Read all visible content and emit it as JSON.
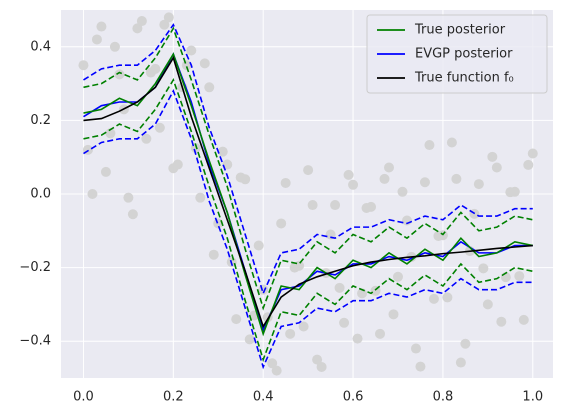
{
  "chart_data": {
    "type": "line",
    "x": [
      0,
      0.04,
      0.08,
      0.12,
      0.16,
      0.2,
      0.24,
      0.28,
      0.32,
      0.36,
      0.4,
      0.44,
      0.48,
      0.52,
      0.56,
      0.6,
      0.64,
      0.68,
      0.72,
      0.76,
      0.8,
      0.84,
      0.88,
      0.92,
      0.96,
      1.0
    ],
    "series": [
      {
        "name": "True posterior",
        "color": "#008000",
        "values": [
          0.22,
          0.23,
          0.26,
          0.24,
          0.3,
          0.38,
          0.24,
          0.09,
          -0.05,
          -0.22,
          -0.38,
          -0.25,
          -0.26,
          -0.2,
          -0.23,
          -0.18,
          -0.2,
          -0.16,
          -0.19,
          -0.15,
          -0.18,
          -0.12,
          -0.17,
          -0.16,
          -0.13,
          -0.14
        ],
        "upper": [
          0.29,
          0.3,
          0.33,
          0.31,
          0.37,
          0.45,
          0.31,
          0.16,
          0.02,
          -0.15,
          -0.31,
          -0.18,
          -0.19,
          -0.13,
          -0.16,
          -0.11,
          -0.13,
          -0.09,
          -0.12,
          -0.08,
          -0.11,
          -0.05,
          -0.1,
          -0.09,
          -0.06,
          -0.07
        ],
        "lower": [
          0.15,
          0.16,
          0.19,
          0.17,
          0.23,
          0.31,
          0.17,
          0.02,
          -0.12,
          -0.29,
          -0.45,
          -0.32,
          -0.33,
          -0.27,
          -0.3,
          -0.25,
          -0.27,
          -0.23,
          -0.26,
          -0.22,
          -0.25,
          -0.19,
          -0.24,
          -0.23,
          -0.2,
          -0.21
        ]
      },
      {
        "name": "EVGP posterior",
        "color": "#0000ff",
        "values": [
          0.21,
          0.24,
          0.25,
          0.25,
          0.29,
          0.38,
          0.25,
          0.08,
          -0.05,
          -0.21,
          -0.37,
          -0.26,
          -0.25,
          -0.21,
          -0.22,
          -0.19,
          -0.19,
          -0.17,
          -0.18,
          -0.16,
          -0.17,
          -0.13,
          -0.16,
          -0.16,
          -0.14,
          -0.14
        ],
        "upper": [
          0.31,
          0.34,
          0.35,
          0.35,
          0.39,
          0.46,
          0.35,
          0.18,
          0.05,
          -0.11,
          -0.27,
          -0.16,
          -0.15,
          -0.11,
          -0.12,
          -0.09,
          -0.09,
          -0.07,
          -0.08,
          -0.06,
          -0.07,
          -0.03,
          -0.06,
          -0.06,
          -0.04,
          -0.04
        ],
        "lower": [
          0.11,
          0.14,
          0.15,
          0.15,
          0.19,
          0.28,
          0.15,
          -0.02,
          -0.15,
          -0.31,
          -0.47,
          -0.36,
          -0.35,
          -0.31,
          -0.32,
          -0.29,
          -0.29,
          -0.27,
          -0.28,
          -0.26,
          -0.27,
          -0.23,
          -0.26,
          -0.26,
          -0.24,
          -0.24
        ]
      },
      {
        "name": "True function f₀",
        "color": "#000000",
        "values": [
          0.2,
          0.205,
          0.225,
          0.25,
          0.29,
          0.37,
          0.21,
          0.07,
          -0.07,
          -0.21,
          -0.36,
          -0.28,
          -0.245,
          -0.225,
          -0.21,
          -0.195,
          -0.185,
          -0.178,
          -0.172,
          -0.168,
          -0.162,
          -0.158,
          -0.153,
          -0.148,
          -0.144,
          -0.14
        ]
      }
    ],
    "scatter": {
      "color": "#d3d3d3",
      "x": [
        0,
        0.02,
        0.04,
        0.06,
        0.08,
        0.1,
        0.12,
        0.14,
        0.16,
        0.18,
        0.2,
        0.22,
        0.24,
        0.26,
        0.28,
        0.3,
        0.32,
        0.34,
        0.36,
        0.38,
        0.4,
        0.42,
        0.44,
        0.46,
        0.48,
        0.5,
        0.52,
        0.54,
        0.56,
        0.58,
        0.6,
        0.62,
        0.64,
        0.66,
        0.68,
        0.7,
        0.72,
        0.74,
        0.76,
        0.78,
        0.8,
        0.82,
        0.84,
        0.86,
        0.88,
        0.9,
        0.92,
        0.94,
        0.96,
        0.98,
        1.0,
        0.01,
        0.03,
        0.05,
        0.07,
        0.09,
        0.11,
        0.13,
        0.15,
        0.17,
        0.19,
        0.21,
        0.23,
        0.25,
        0.27,
        0.29,
        0.31,
        0.33,
        0.35,
        0.37,
        0.39,
        0.41,
        0.43,
        0.45,
        0.47,
        0.49,
        0.51,
        0.53,
        0.55,
        0.57,
        0.59,
        0.61,
        0.63,
        0.65,
        0.67,
        0.69,
        0.71,
        0.73,
        0.75,
        0.77,
        0.79,
        0.81,
        0.83,
        0.85,
        0.87,
        0.89,
        0.91,
        0.93,
        0.95,
        0.97,
        0.99
      ],
      "y": [
        0.35,
        0.0,
        0.455,
        0.165,
        0.325,
        -0.01,
        0.45,
        0.15,
        0.34,
        0.46,
        0.07,
        0.29,
        0.39,
        -0.01,
        0.29,
        -0.08,
        0.08,
        -0.34,
        0.04,
        -0.33,
        -0.26,
        -0.46,
        -0.08,
        -0.38,
        -0.195,
        0.065,
        -0.45,
        -0.215,
        -0.03,
        -0.35,
        0.025,
        -0.27,
        -0.035,
        -0.38,
        0.072,
        -0.225,
        -0.072,
        -0.42,
        0.032,
        -0.285,
        -0.112,
        0.14,
        -0.458,
        -0.155,
        0.027,
        -0.3,
        0.072,
        -0.226,
        0.006,
        -0.342,
        0.11,
        0.12,
        0.42,
        0.06,
        0.4,
        0.23,
        -0.055,
        0.47,
        0.33,
        0.18,
        0.48,
        0.08,
        0.35,
        0.125,
        0.355,
        -0.165,
        0.115,
        -0.185,
        0.045,
        -0.395,
        -0.14,
        -0.335,
        -0.48,
        0.03,
        -0.2,
        -0.36,
        -0.03,
        -0.47,
        -0.11,
        -0.255,
        0.052,
        -0.393,
        -0.038,
        -0.263,
        0.041,
        -0.327,
        0.006,
        -0.171,
        -0.469,
        0.133,
        -0.114,
        -0.281,
        0.041,
        -0.407,
        -0.054,
        -0.202,
        0.101,
        -0.347,
        0.005,
        -0.223,
        0.079
      ]
    },
    "xlim": [
      -0.05,
      1.045
    ],
    "ylim": [
      -0.5,
      0.5
    ],
    "xticks": [
      {
        "value": 0,
        "label": "0.0"
      },
      0.2,
      0.4,
      0.6,
      0.8,
      {
        "value": 1,
        "label": "1.0"
      }
    ],
    "yticks": [
      {
        "value": -0.4,
        "label": "−0.4"
      },
      {
        "value": -0.2,
        "label": "−0.2"
      },
      {
        "value": 0,
        "label": "0.0"
      },
      0.2,
      0.4
    ],
    "grid": true,
    "legend": "upper right"
  }
}
